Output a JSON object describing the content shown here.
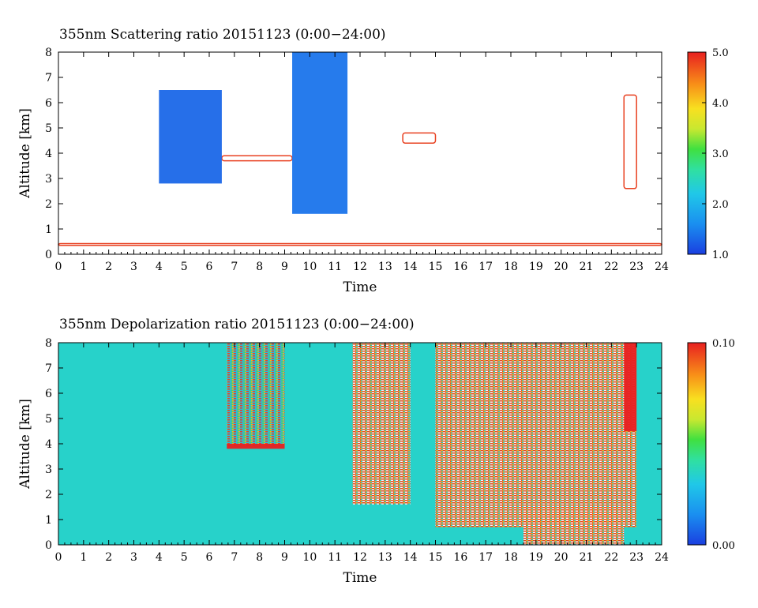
{
  "chart_data": [
    {
      "type": "heatmap",
      "title": "355nm Scattering ratio  20151123 (0:00−24:00)",
      "xlabel": "Time",
      "ylabel": "Altitude [km]",
      "xlim": [
        0,
        24
      ],
      "ylim": [
        0,
        8
      ],
      "x_ticks": [
        "0",
        "1",
        "2",
        "3",
        "4",
        "5",
        "6",
        "7",
        "8",
        "9",
        "10",
        "11",
        "12",
        "13",
        "14",
        "15",
        "16",
        "17",
        "18",
        "19",
        "20",
        "21",
        "22",
        "23",
        "24"
      ],
      "y_ticks": [
        "0",
        "1",
        "2",
        "3",
        "4",
        "5",
        "6",
        "7",
        "8"
      ],
      "colorbar": {
        "min": 1.0,
        "max": 5.0,
        "labels": [
          "1.0",
          "2.0",
          "3.0",
          "4.0",
          "5.0"
        ]
      },
      "background": "#ffffff",
      "features": [
        {
          "name": "cloud layer near 3.8 km",
          "x": [
            6.5,
            9.3
          ],
          "y": [
            3.7,
            3.9
          ],
          "value": 5.0
        },
        {
          "name": "aerosol patches 4-6.5 h",
          "x": [
            4.0,
            6.5
          ],
          "y": [
            2.8,
            6.5
          ],
          "value": 1.3
        },
        {
          "name": "dense column 9.3-11.5 h",
          "x": [
            9.3,
            11.5
          ],
          "y": [
            1.6,
            8.0
          ],
          "value": 1.4
        },
        {
          "name": "cloud near 4.7 km",
          "x": [
            13.7,
            15.0
          ],
          "y": [
            4.4,
            4.8
          ],
          "value": 5.0
        },
        {
          "name": "cloud column near 22.8 h",
          "x": [
            22.5,
            23.0
          ],
          "y": [
            2.6,
            6.3
          ],
          "value": 5.0
        },
        {
          "name": "boundary layer line",
          "x": [
            0,
            24
          ],
          "y": [
            0.35,
            0.42
          ],
          "value": 5.0
        }
      ]
    },
    {
      "type": "heatmap",
      "title": "355nm Depolarization ratio  20151123 (0:00−24:00)",
      "xlabel": "Time",
      "ylabel": "Altitude [km]",
      "xlim": [
        0,
        24
      ],
      "ylim": [
        0,
        8
      ],
      "x_ticks": [
        "0",
        "1",
        "2",
        "3",
        "4",
        "5",
        "6",
        "7",
        "8",
        "9",
        "10",
        "11",
        "12",
        "13",
        "14",
        "15",
        "16",
        "17",
        "18",
        "19",
        "20",
        "21",
        "22",
        "23",
        "24"
      ],
      "y_ticks": [
        "0",
        "1",
        "2",
        "3",
        "4",
        "5",
        "6",
        "7",
        "8"
      ],
      "colorbar": {
        "min": 0.0,
        "max": 0.1,
        "labels": [
          "0.00",
          "0.10"
        ]
      },
      "background_value": 0.035,
      "features": [
        {
          "name": "noisy streaks 6.7-9 h",
          "x": [
            6.7,
            9.0
          ],
          "y": [
            3.9,
            8.0
          ],
          "value": 0.07
        },
        {
          "name": "cloud layer near 3.9 km",
          "x": [
            6.7,
            9.0
          ],
          "y": [
            3.8,
            4.0
          ],
          "value": 0.1
        },
        {
          "name": "high depolarization region 11.7-14 h",
          "x": [
            11.7,
            14.0
          ],
          "y": [
            1.6,
            8.0
          ],
          "value": 0.09
        },
        {
          "name": "high depolarization region 15-23 h",
          "x": [
            15.0,
            23.0
          ],
          "y": [
            0.7,
            8.0
          ],
          "value": 0.08
        },
        {
          "name": "lower layer 18.5-22.5 h",
          "x": [
            18.5,
            22.5
          ],
          "y": [
            0.0,
            1.5
          ],
          "value": 0.09
        },
        {
          "name": "column near 22.8 h",
          "x": [
            22.5,
            23.0
          ],
          "y": [
            4.5,
            8.0
          ],
          "value": 0.1
        }
      ]
    }
  ]
}
